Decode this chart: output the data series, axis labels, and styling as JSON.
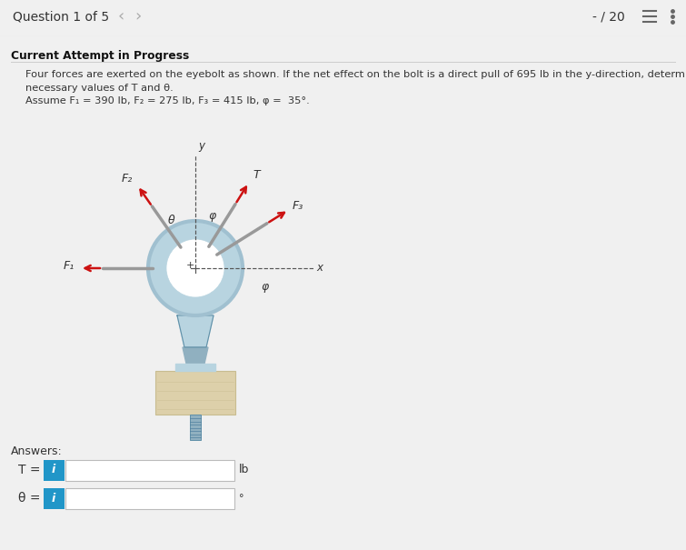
{
  "bg_color": "#f0f0f0",
  "content_bg": "#ffffff",
  "header_text": "Question 1 of 5",
  "header_score": "- / 20",
  "header_bg": "#f5f5f5",
  "section_label": "Current Attempt in Progress",
  "problem_text_line1": "Four forces are exerted on the eyebolt as shown. If the net effect on the bolt is a direct pull of 695 lb in the y-direction, determine the",
  "problem_text_line2": "necessary values of T and θ.",
  "problem_text_line3": "Assume F₁ = 390 lb, F₂ = 275 lb, F₃ = 415 lb, φ =  35°.",
  "answers_label": "Answers:",
  "T_label": "T =",
  "T_unit": "lb",
  "theta_label": "θ =",
  "theta_unit": "°",
  "info_btn_color": "#2196c8",
  "input_border": "#bbbbbb",
  "input_bg": "#ffffff",
  "divider_color": "#cccccc",
  "text_color": "#333333",
  "label_bold_color": "#111111",
  "arrow_color": "#cc1111",
  "rod_color": "#999999",
  "ring_color": "#8ab4c8",
  "ring_light": "#b8d4e0",
  "ring_dark": "#6090a8",
  "wood_color": "#ddd0aa",
  "wood_dark": "#c8bc90",
  "bolt_color": "#90b0c0"
}
